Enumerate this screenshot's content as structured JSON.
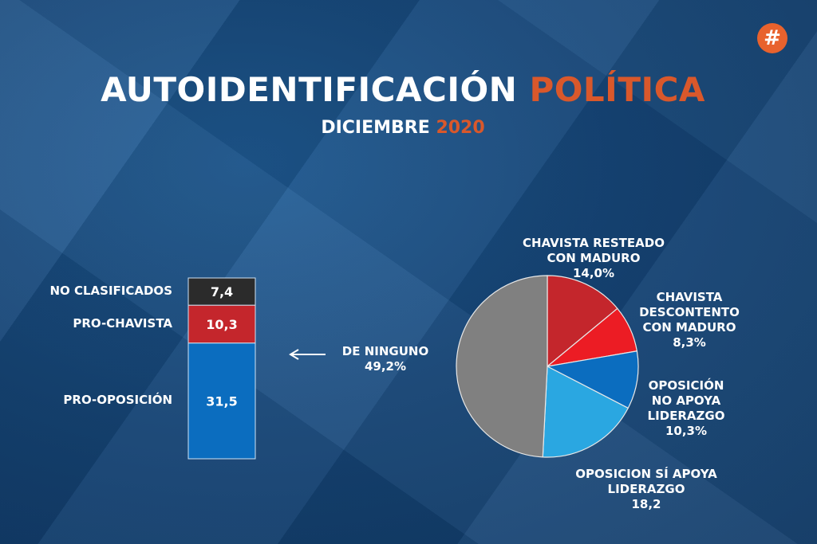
{
  "header": {
    "title_main": "AUTOIDENTIFICACIÓN",
    "title_accent": "POLÍTICA",
    "subtitle_main": "DICIEMBRE",
    "subtitle_accent": "2020",
    "logo": "#"
  },
  "colors": {
    "accent": "#d9582b",
    "background": "#17497d"
  },
  "chart_data": [
    {
      "type": "bar",
      "stacked": true,
      "categories": [
        "PRO-OPOSICIÓN",
        "PRO-CHAVISTA",
        "NO CLASIFICADOS"
      ],
      "values": [
        31.5,
        10.3,
        7.4
      ],
      "value_labels": [
        "31,5",
        "10,3",
        "7,4"
      ],
      "colors": [
        "#0b6dbf",
        "#c4262c",
        "#2b2b2b"
      ]
    },
    {
      "type": "pie",
      "start": "top",
      "direction": "clockwise",
      "slices": [
        {
          "label_lines": [
            "CHAVISTA RESTEADO",
            "CON MADURO"
          ],
          "value": 14.0,
          "value_label": "14,0%",
          "color": "#c4262c"
        },
        {
          "label_lines": [
            "CHAVISTA",
            "DESCONTENTO",
            "CON MADURO"
          ],
          "value": 8.3,
          "value_label": "8,3%",
          "color": "#ec1c24"
        },
        {
          "label_lines": [
            "OPOSICIÓN",
            "NO APOYA",
            "LIDERAZGO"
          ],
          "value": 10.3,
          "value_label": "10,3%",
          "color": "#0b6dbf"
        },
        {
          "label_lines": [
            "OPOSICION SÍ APOYA",
            "LIDERAZGO"
          ],
          "value": 18.2,
          "value_label": "18,2",
          "color": "#2aa7e1"
        },
        {
          "label_lines": [
            "DE NINGUNO"
          ],
          "value": 49.2,
          "value_label": "49,2%",
          "color": "#808080"
        }
      ]
    }
  ]
}
